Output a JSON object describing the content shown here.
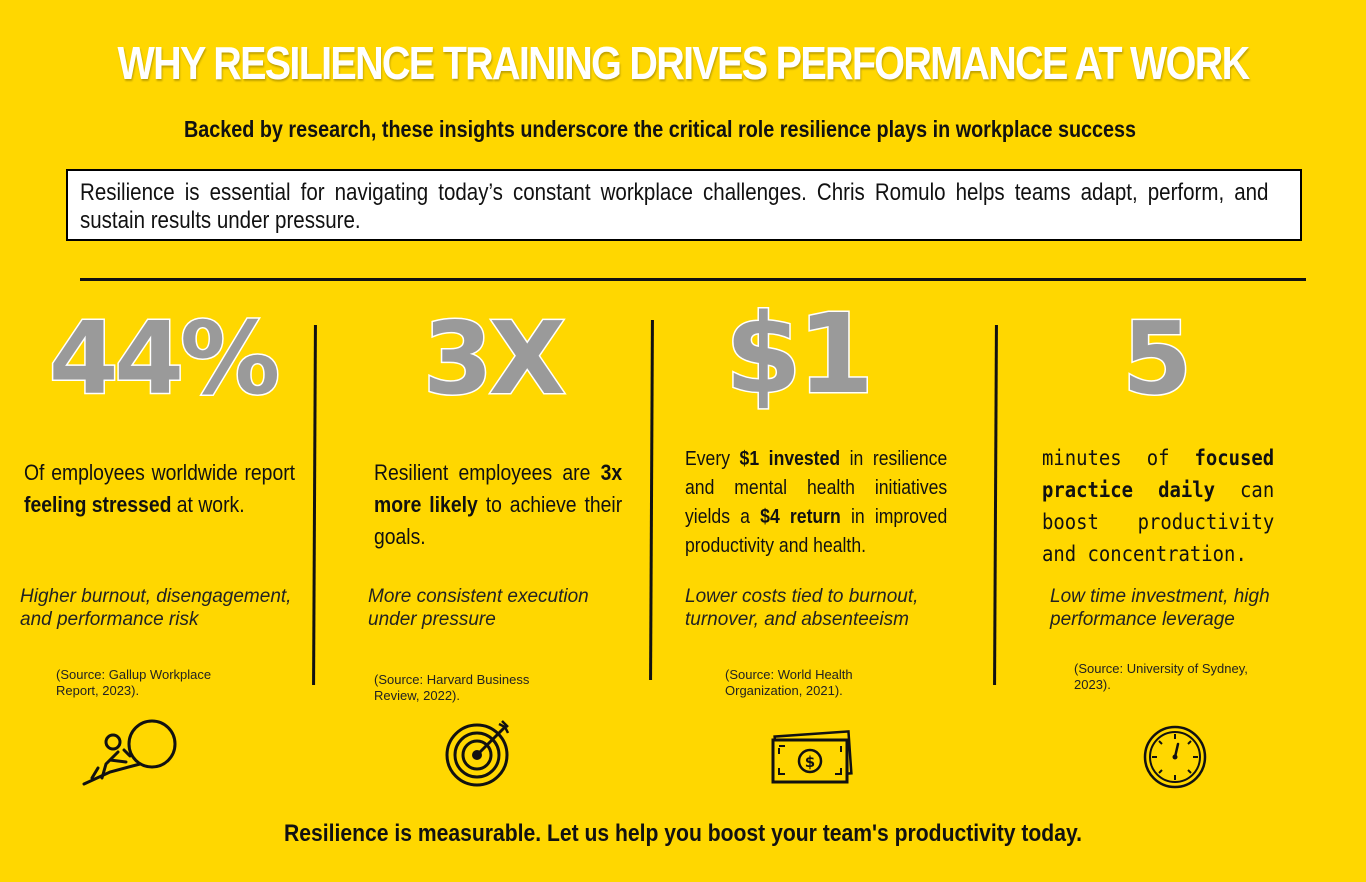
{
  "header": {
    "title": "WHY RESILIENCE TRAINING DRIVES PERFORMANCE AT WORK",
    "subtitle": "Backed by research, these insights underscore the critical role resilience plays in workplace success",
    "intro": "Resilience is essential for navigating today’s constant workplace challenges. Chris Romulo helps teams adapt, perform, and sustain results under pressure."
  },
  "stats": [
    {
      "number": "44%",
      "desc_pre": "Of employees worldwide report ",
      "desc_bold": "feeling stressed",
      "desc_post": " at work.",
      "impact": "Higher burnout, disengagement, and performance risk",
      "source": "(Source: Gallup Workplace Report, 2023).",
      "icon": "person-pushing-boulder-icon"
    },
    {
      "number": "3X",
      "desc_pre": "Resilient employees are ",
      "desc_bold": "3x more likely",
      "desc_post": " to achieve their goals.",
      "impact": "More consistent execution under pressure",
      "source": "(Source: Harvard Business Review, 2022).",
      "icon": "target-icon"
    },
    {
      "number": "$1",
      "desc_pre": "Every ",
      "desc_bold": "$1 invested",
      "desc_mid": " in resilience and mental health initiatives yields a ",
      "desc_bold2": "$4 return",
      "desc_post": " in improved productivity and health.",
      "impact": "Lower costs tied to burnout, turnover, and absenteeism",
      "source": "(Source: World Health Organization, 2021).",
      "icon": "money-bill-icon"
    },
    {
      "number": "5",
      "desc_pre": "minutes of ",
      "desc_bold": "focused practice daily",
      "desc_post": " can boost productivity and concentration.",
      "impact": "Low time investment, high performance leverage",
      "source": "(Source: University of Sydney, 2023).",
      "icon": "stopwatch-icon"
    }
  ],
  "footer": "Resilience is measurable. Let us help you boost your team's productivity today.",
  "colors": {
    "background": "#FFD700",
    "number_fill": "#9a9a9a",
    "text": "#111111"
  }
}
